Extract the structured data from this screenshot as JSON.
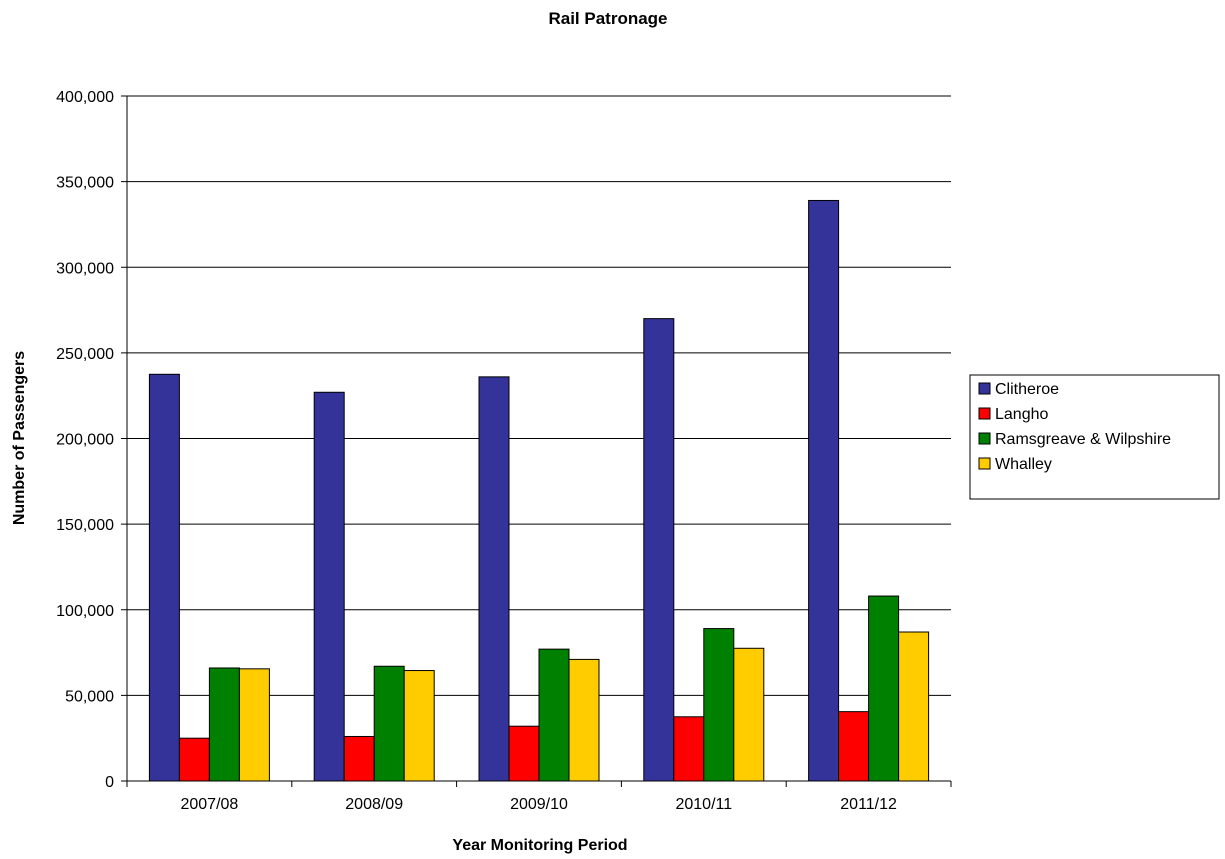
{
  "chart_data": {
    "type": "bar",
    "title": "Rail Patronage",
    "xlabel": "Year Monitoring Period",
    "ylabel": "Number of Passengers",
    "categories": [
      "2007/08",
      "2008/09",
      "2009/10",
      "2010/11",
      "2011/12"
    ],
    "ylim": [
      0,
      400000
    ],
    "yticks": [
      0,
      50000,
      100000,
      150000,
      200000,
      250000,
      300000,
      350000,
      400000
    ],
    "ytick_labels": [
      "0",
      "50,000",
      "100,000",
      "150,000",
      "200,000",
      "250,000",
      "300,000",
      "350,000",
      "400,000"
    ],
    "grid": true,
    "legend_position": "right",
    "series": [
      {
        "name": "Clitheroe",
        "color": "#333399",
        "values": [
          237500,
          227000,
          236000,
          270000,
          339000
        ]
      },
      {
        "name": "Langho",
        "color": "#ff0000",
        "values": [
          25000,
          26000,
          32000,
          37500,
          40500
        ]
      },
      {
        "name": "Ramsgreave & Wilpshire",
        "color": "#008000",
        "values": [
          66000,
          67000,
          77000,
          89000,
          108000
        ]
      },
      {
        "name": "Whalley",
        "color": "#ffcc00",
        "values": [
          65500,
          64500,
          71000,
          77500,
          87000
        ]
      }
    ]
  }
}
